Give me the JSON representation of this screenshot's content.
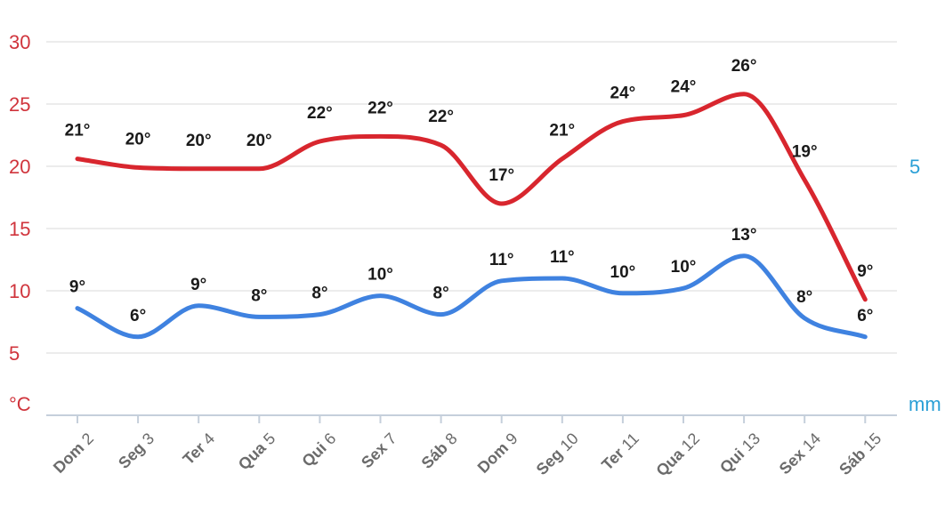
{
  "chart_data": {
    "type": "line",
    "categories": [
      {
        "day": "Dom",
        "num": "2"
      },
      {
        "day": "Seg",
        "num": "3"
      },
      {
        "day": "Ter",
        "num": "4"
      },
      {
        "day": "Qua",
        "num": "5"
      },
      {
        "day": "Qui",
        "num": "6"
      },
      {
        "day": "Sex",
        "num": "7"
      },
      {
        "day": "Sáb",
        "num": "8"
      },
      {
        "day": "Dom",
        "num": "9"
      },
      {
        "day": "Seg",
        "num": "10"
      },
      {
        "day": "Ter",
        "num": "11"
      },
      {
        "day": "Qua",
        "num": "12"
      },
      {
        "day": "Qui",
        "num": "13"
      },
      {
        "day": "Sex",
        "num": "14"
      },
      {
        "day": "Sáb",
        "num": "15"
      }
    ],
    "series": [
      {
        "color": "#d8262e",
        "values": [
          20.6,
          19.9,
          19.8,
          19.8,
          22.0,
          22.4,
          21.7,
          17.0,
          20.6,
          23.6,
          24.1,
          25.8,
          18.9,
          9.3
        ],
        "labels": [
          "21°",
          "20°",
          "20°",
          "20°",
          "22°",
          "22°",
          "22°",
          "17°",
          "21°",
          "24°",
          "24°",
          "26°",
          "19°",
          "9°"
        ]
      },
      {
        "color": "#3f82e0",
        "values": [
          8.6,
          6.3,
          8.8,
          7.9,
          8.1,
          9.6,
          8.1,
          10.8,
          11.0,
          9.8,
          10.2,
          12.8,
          7.8,
          6.3
        ],
        "labels": [
          "9°",
          "6°",
          "9°",
          "8°",
          "8°",
          "10°",
          "8°",
          "11°",
          "11°",
          "10°",
          "10°",
          "13°",
          "8°",
          "6°"
        ]
      }
    ],
    "ylim": [
      0,
      30
    ],
    "yticks_left": [
      "5",
      "10",
      "15",
      "20",
      "25",
      "30"
    ],
    "ylabel_left": "°C",
    "ytick_right": "5",
    "ylabel_right": "mm",
    "grid": true,
    "colors": {
      "left_axis": "#d0343c",
      "right_axis": "#2a9fd6",
      "gridline": "#ececec",
      "baseline": "#c5cfdb"
    }
  }
}
